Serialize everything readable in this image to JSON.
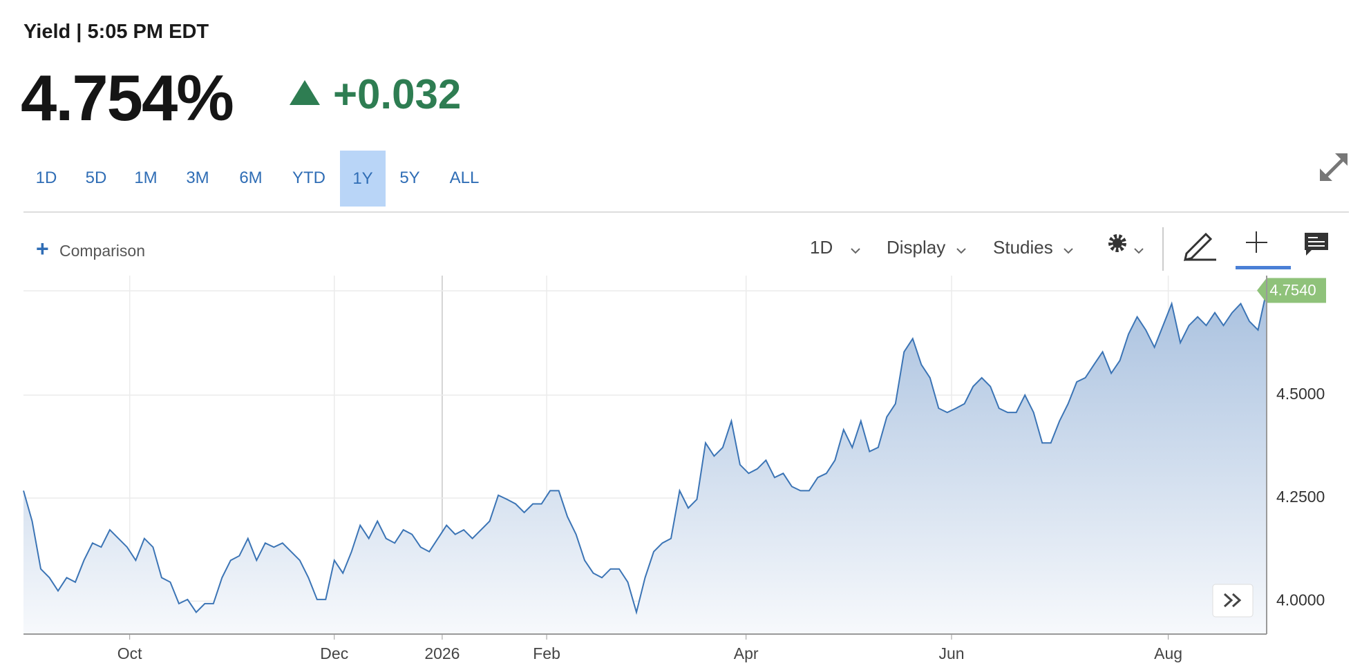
{
  "header": {
    "title": "Yield | 5:05 PM EDT",
    "price": "4.754%",
    "change": "+0.032"
  },
  "ranges": [
    "1D",
    "5D",
    "1M",
    "3M",
    "6M",
    "YTD",
    "1Y",
    "5Y",
    "ALL"
  ],
  "active_range": "1Y",
  "toolbar": {
    "comparison": "Comparison",
    "interval": "1D",
    "display": "Display",
    "studies": "Studies"
  },
  "chart_data": {
    "type": "area",
    "series": [
      {
        "color": "#3b74b5",
        "values": [
          4.268,
          4.194,
          4.078,
          4.057,
          4.025,
          4.057,
          4.046,
          4.099,
          4.141,
          4.131,
          4.173,
          4.152,
          4.131,
          4.099,
          4.152,
          4.131,
          4.057,
          4.046,
          3.994,
          4.004,
          3.973,
          3.994,
          3.994,
          4.057,
          4.099,
          4.11,
          4.152,
          4.099,
          4.141,
          4.131,
          4.141,
          4.12,
          4.099,
          4.057,
          4.004,
          4.004,
          4.099,
          4.068,
          4.12,
          4.184,
          4.152,
          4.194,
          4.152,
          4.141,
          4.173,
          4.162,
          4.131,
          4.12,
          4.152,
          4.184,
          4.162,
          4.173,
          4.152,
          4.173,
          4.194,
          4.257,
          4.247,
          4.236,
          4.215,
          4.236,
          4.236,
          4.268,
          4.268,
          4.205,
          4.162,
          4.099,
          4.068,
          4.057,
          4.078,
          4.078,
          4.046,
          3.973,
          4.057,
          4.12,
          4.141,
          4.152,
          4.268,
          4.226,
          4.247,
          4.384,
          4.352,
          4.373,
          4.437,
          4.331,
          4.31,
          4.321,
          4.342,
          4.3,
          4.31,
          4.278,
          4.268,
          4.268,
          4.3,
          4.31,
          4.342,
          4.416,
          4.373,
          4.437,
          4.363,
          4.373,
          4.447,
          4.479,
          4.605,
          4.637,
          4.574,
          4.542,
          4.468,
          4.458,
          4.468,
          4.479,
          4.521,
          4.542,
          4.521,
          4.468,
          4.458,
          4.458,
          4.5,
          4.458,
          4.384,
          4.384,
          4.437,
          4.479,
          4.532,
          4.542,
          4.574,
          4.605,
          4.553,
          4.584,
          4.648,
          4.69,
          4.658,
          4.616,
          4.669,
          4.722,
          4.627,
          4.669,
          4.69,
          4.669,
          4.7,
          4.669,
          4.7,
          4.722,
          4.679,
          4.658,
          4.754
        ]
      }
    ],
    "last_label": "4.7540",
    "xlim": [
      0,
      144
    ],
    "xticks": [
      {
        "value": 12.3,
        "label": "Oct"
      },
      {
        "value": 36,
        "label": "Dec"
      },
      {
        "value": 48.5,
        "label": "2026"
      },
      {
        "value": 60.6,
        "label": "Feb"
      },
      {
        "value": 83.7,
        "label": "Apr"
      },
      {
        "value": 107.5,
        "label": "Jun"
      },
      {
        "value": 132.6,
        "label": "Aug"
      }
    ],
    "ylim": [
      3.92,
      4.79
    ],
    "yticks": [
      {
        "value": 4,
        "label": "4.0000"
      },
      {
        "value": 4.25,
        "label": "4.2500"
      },
      {
        "value": 4.5,
        "label": "4.5000"
      }
    ],
    "grid": true
  }
}
